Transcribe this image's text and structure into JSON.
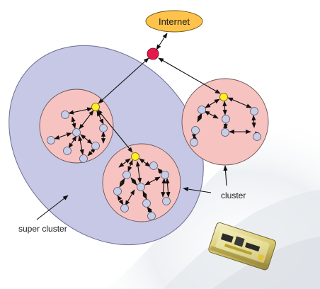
{
  "internet": {
    "label": "Internet"
  },
  "labels": {
    "cluster": "cluster",
    "super_cluster": "super cluster"
  },
  "colors": {
    "internet_fill": "#ffc24a",
    "router": "#e8194a",
    "cluster_fill": "#f7c3c0",
    "super_cluster_fill": "#c7c8e6",
    "gateway_node": "#ffee22",
    "sensor_node": "#c8cde6"
  },
  "icons": [
    "sensor-device-photo"
  ]
}
